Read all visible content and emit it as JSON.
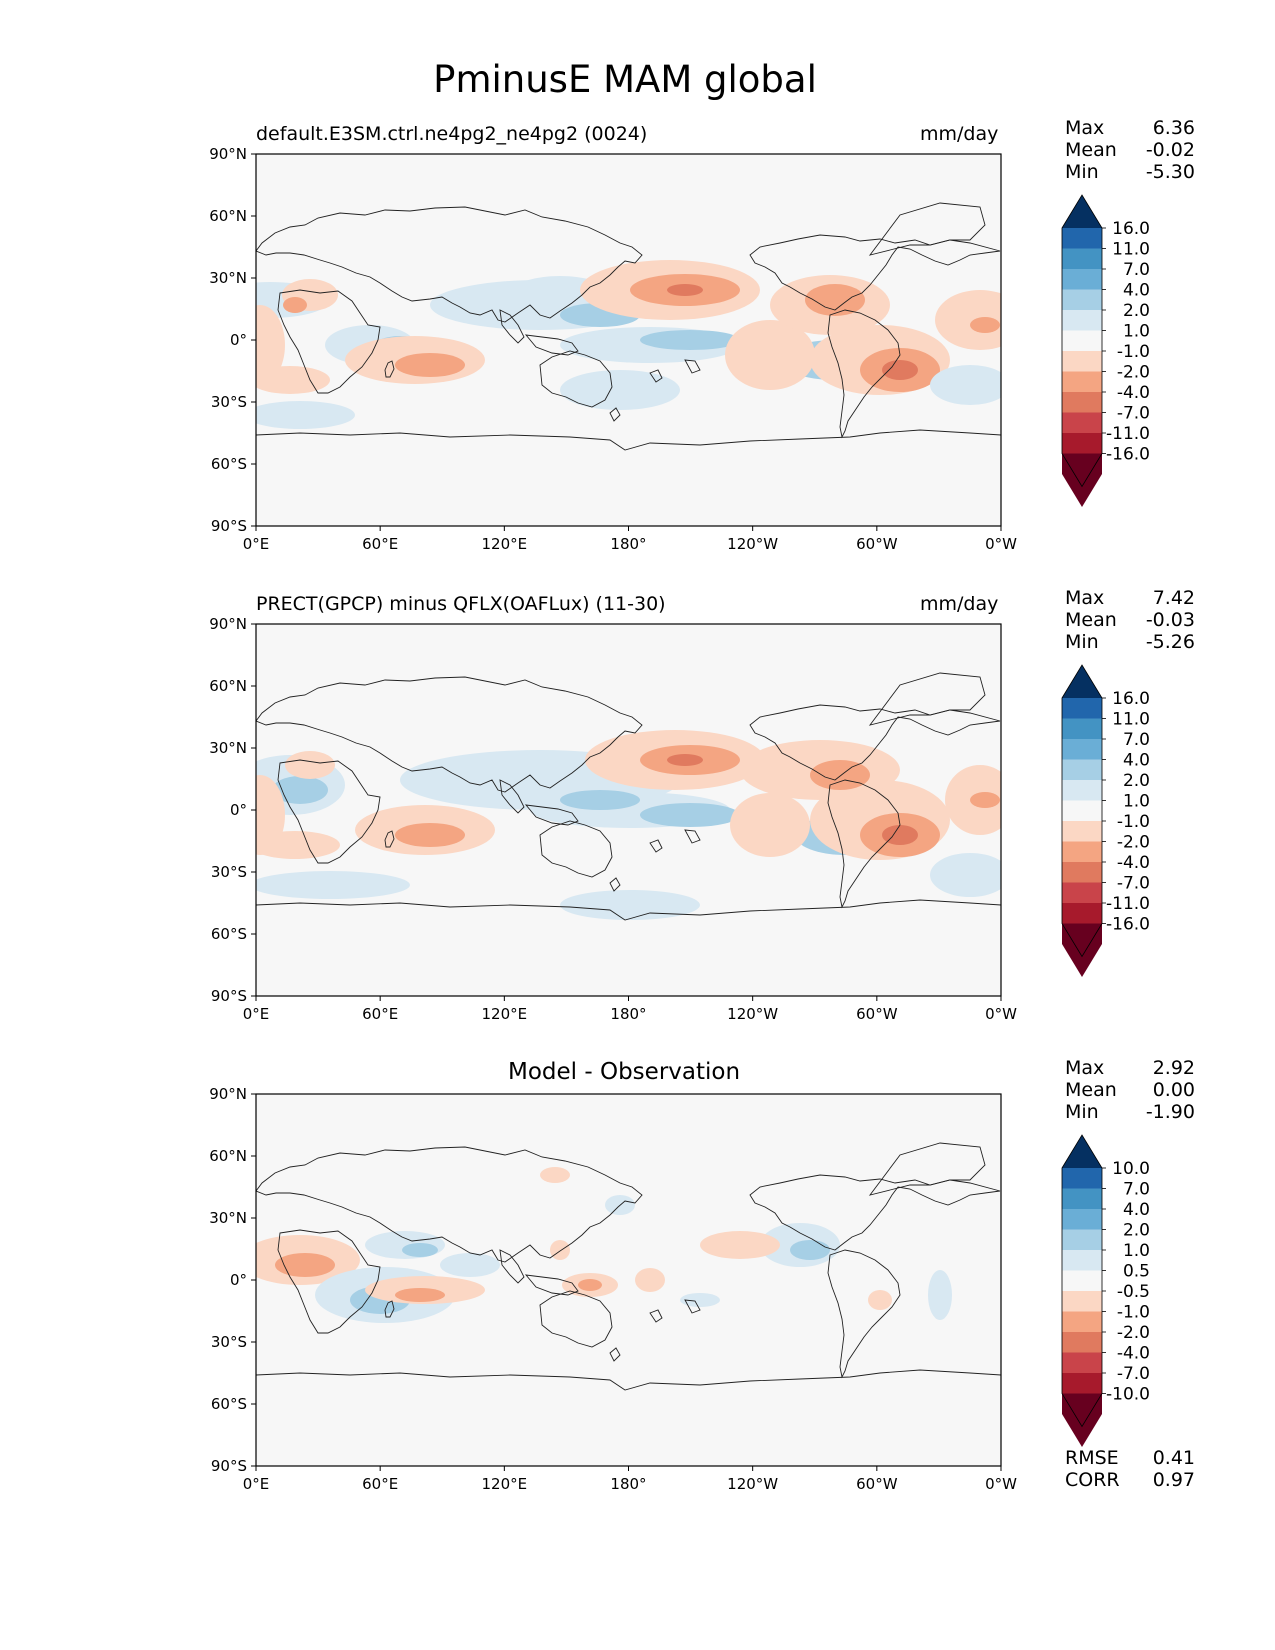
{
  "figure": {
    "title": "PminusE MAM global",
    "x_ticks": [
      "0°E",
      "60°E",
      "120°E",
      "180°",
      "120°W",
      "60°W",
      "0°W"
    ],
    "y_ticks": [
      "90°N",
      "60°N",
      "30°N",
      "0°",
      "30°S",
      "60°S",
      "90°S"
    ]
  },
  "panels": [
    {
      "title": "default.E3SM.ctrl.ne4pg2_ne4pg2 (0024)",
      "units": "mm/day",
      "stats": {
        "max_label": "Max",
        "max": "6.36",
        "mean_label": "Mean",
        "mean": "-0.02",
        "min_label": "Min",
        "min": "-5.30"
      },
      "colorbar_labels": [
        "16.0",
        "11.0",
        "7.0",
        "4.0",
        "2.0",
        "1.0",
        "-1.0",
        "-2.0",
        "-4.0",
        "-7.0",
        "-11.0",
        "-16.0"
      ]
    },
    {
      "title": "PRECT(GPCP) minus QFLX(OAFLux) (11-30)",
      "units": "mm/day",
      "stats": {
        "max_label": "Max",
        "max": "7.42",
        "mean_label": "Mean",
        "mean": "-0.03",
        "min_label": "Min",
        "min": "-5.26"
      },
      "colorbar_labels": [
        "16.0",
        "11.0",
        "7.0",
        "4.0",
        "2.0",
        "1.0",
        "-1.0",
        "-2.0",
        "-4.0",
        "-7.0",
        "-11.0",
        "-16.0"
      ]
    },
    {
      "title": "Model - Observation",
      "units": "",
      "stats": {
        "max_label": "Max",
        "max": "2.92",
        "mean_label": "Mean",
        "mean": "0.00",
        "min_label": "Min",
        "min": "-1.90"
      },
      "colorbar_labels": [
        "10.0",
        "7.0",
        "4.0",
        "2.0",
        "1.0",
        "0.5",
        "-0.5",
        "-1.0",
        "-2.0",
        "-4.0",
        "-7.0",
        "-10.0"
      ],
      "metrics": {
        "rmse_label": "RMSE",
        "rmse": "0.41",
        "corr_label": "CORR",
        "corr": "0.97"
      }
    }
  ],
  "colors": {
    "colorbar": [
      "#053061",
      "#2166ac",
      "#4393c3",
      "#6aaed6",
      "#a6cfe5",
      "#d8e8f2",
      "#f7f7f7",
      "#fbd7c4",
      "#f4a582",
      "#e07a5f",
      "#c9444a",
      "#a71a2c",
      "#67001f"
    ],
    "background": "#f7f7f7",
    "coast": "#222222"
  }
}
